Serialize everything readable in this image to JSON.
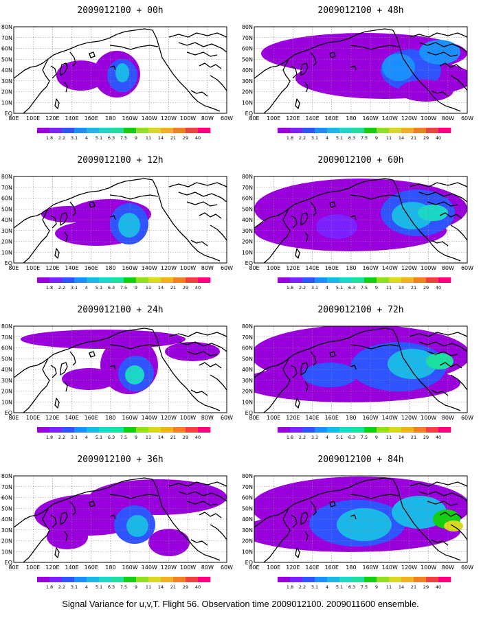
{
  "colors": {
    "scale": [
      "#9a00dc",
      "#7b20ff",
      "#2f53ff",
      "#1a8fff",
      "#1ab8e8",
      "#1ad8c8",
      "#1ae0a0",
      "#10d010",
      "#90e020",
      "#d8d820",
      "#f0b020",
      "#f08020",
      "#f04040",
      "#ff0080"
    ],
    "land_outline": "#000000",
    "grid": "#888888"
  },
  "legend": {
    "ticks": [
      "1.8",
      "2.2",
      "3.1",
      "4",
      "5.1",
      "6.3",
      "7.5",
      "9",
      "11",
      "14",
      "21",
      "29",
      "40"
    ]
  },
  "axes": {
    "lon_labels": [
      "80E",
      "100E",
      "120E",
      "140E",
      "160E",
      "180",
      "160W",
      "140W",
      "120W",
      "100W",
      "80W",
      "60W"
    ],
    "lat_labels": [
      "EQ",
      "10N",
      "20N",
      "30N",
      "40N",
      "50N",
      "60N",
      "70N",
      "80N"
    ]
  },
  "panels": [
    {
      "title": "2009012100 + 00h",
      "level": 0
    },
    {
      "title": "2009012100 + 12h",
      "level": 1
    },
    {
      "title": "2009012100 + 24h",
      "level": 2
    },
    {
      "title": "2009012100 + 36h",
      "level": 3
    },
    {
      "title": "2009012100 + 48h",
      "level": 4
    },
    {
      "title": "2009012100 + 60h",
      "level": 5
    },
    {
      "title": "2009012100 + 72h",
      "level": 6
    },
    {
      "title": "2009012100 + 84h",
      "level": 7
    }
  ],
  "footer": "Signal Variance for u,v,T. Flight 56. Observation time 2009012100. 2009011600 ensemble."
}
